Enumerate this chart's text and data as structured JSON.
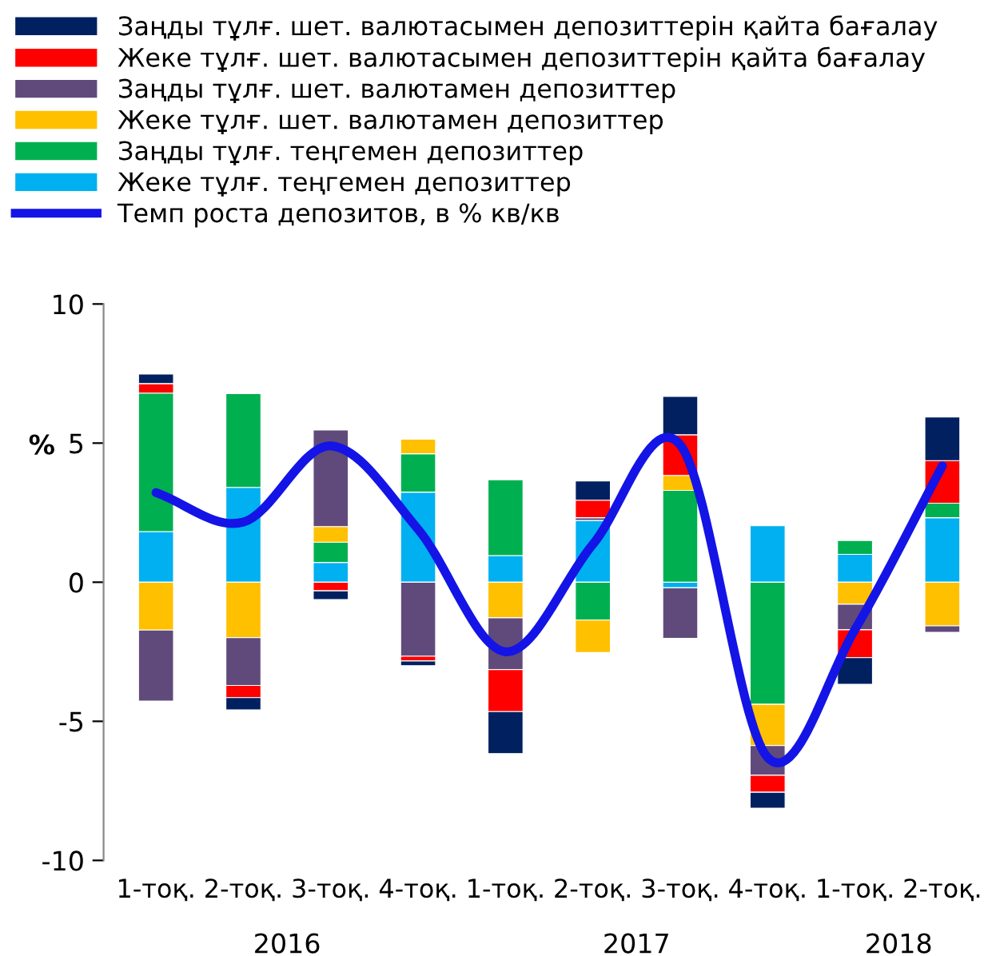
{
  "chart_data": {
    "type": "bar",
    "stacked": true,
    "categories": [
      "1-тоқ.",
      "2-тоқ.",
      "3-тоқ.",
      "4-тоқ.",
      "1-тоқ.",
      "2-тоқ.",
      "3-тоқ.",
      "4-тоқ.",
      "1-тоқ.",
      "2-тоқ."
    ],
    "series": [
      {
        "name": "Жеке тұлғ. теңгемен депозиттер",
        "color": "#00b0f0",
        "values": [
          1.82,
          3.41,
          0.71,
          3.24,
          0.96,
          2.22,
          -0.2,
          2.03,
          1.0,
          2.32
        ]
      },
      {
        "name": "Заңды тұлғ. теңгемен депозиттер",
        "color": "#00b050",
        "values": [
          4.98,
          3.37,
          0.73,
          1.38,
          2.72,
          -1.36,
          3.3,
          -4.39,
          0.5,
          0.52
        ]
      },
      {
        "name": "Жеке тұлғ. шет. валютамен депозиттер",
        "color": "#ffc000",
        "values": [
          -1.72,
          -1.99,
          0.56,
          0.52,
          -1.28,
          -1.17,
          0.54,
          -1.48,
          -0.79,
          -1.57
        ]
      },
      {
        "name": "Заңды тұлғ. шет. валютамен депозиттер",
        "color": "#604a7b",
        "values": [
          -2.55,
          -1.72,
          3.47,
          -2.66,
          -1.86,
          0.1,
          -1.82,
          -1.07,
          -0.92,
          -0.23
        ]
      },
      {
        "name": "Жеке тұлғ. шет. валютасымен депозиттерін қайта бағалау",
        "color": "#ff0000",
        "values": [
          0.34,
          -0.44,
          -0.31,
          -0.17,
          -1.51,
          0.63,
          1.46,
          -0.61,
          -1.0,
          1.53
        ]
      },
      {
        "name": "Заңды тұлғ. шет. валютасымен депозиттерін қайта бағалау",
        "color": "#002060",
        "values": [
          0.34,
          -0.44,
          -0.31,
          -0.17,
          -1.51,
          0.69,
          1.38,
          -0.57,
          -0.96,
          1.57
        ]
      },
      {
        "name": "Темп роста депозитов, в % кв/кв",
        "type": "line",
        "color": "#1414e6",
        "values": [
          3.22,
          2.16,
          4.9,
          1.9,
          -2.5,
          1.36,
          4.94,
          -6.3,
          -1.7,
          4.18
        ]
      }
    ],
    "ylabel": "%",
    "ylim": [
      -10,
      10
    ],
    "yticks": [
      -10,
      -5,
      0,
      5,
      10
    ],
    "annotations": [
      "2016",
      "2017",
      "2018"
    ],
    "legend": "top",
    "grid": false
  }
}
